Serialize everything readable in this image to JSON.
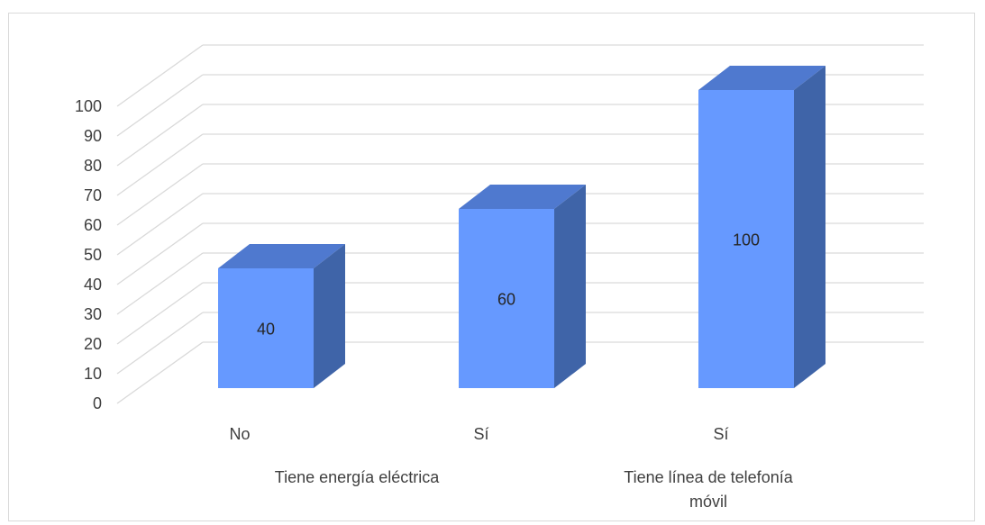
{
  "chart_data": {
    "type": "bar",
    "title": "",
    "xlabel": "",
    "ylabel": "",
    "ylim": [
      0,
      100
    ],
    "yticks": [
      0,
      10,
      20,
      30,
      40,
      50,
      60,
      70,
      80,
      90,
      100
    ],
    "grid": true,
    "three_d": true,
    "categories": [
      "No",
      "Sí",
      "Sí"
    ],
    "groups": [
      {
        "label": "Tiene energía eléctrica",
        "categories": [
          "No",
          "Sí"
        ]
      },
      {
        "label": "Tiene línea de telefonía móvil",
        "categories": [
          "Sí"
        ]
      }
    ],
    "series": [
      {
        "values": [
          40,
          60,
          100
        ],
        "data_labels": [
          "40",
          "60",
          "100"
        ]
      }
    ],
    "colors": {
      "bar_front": "#6699ff",
      "bar_top": "#4f79cf",
      "bar_side": "#3f64a8",
      "grid": "#d9d9d9",
      "text": "#404040"
    }
  }
}
